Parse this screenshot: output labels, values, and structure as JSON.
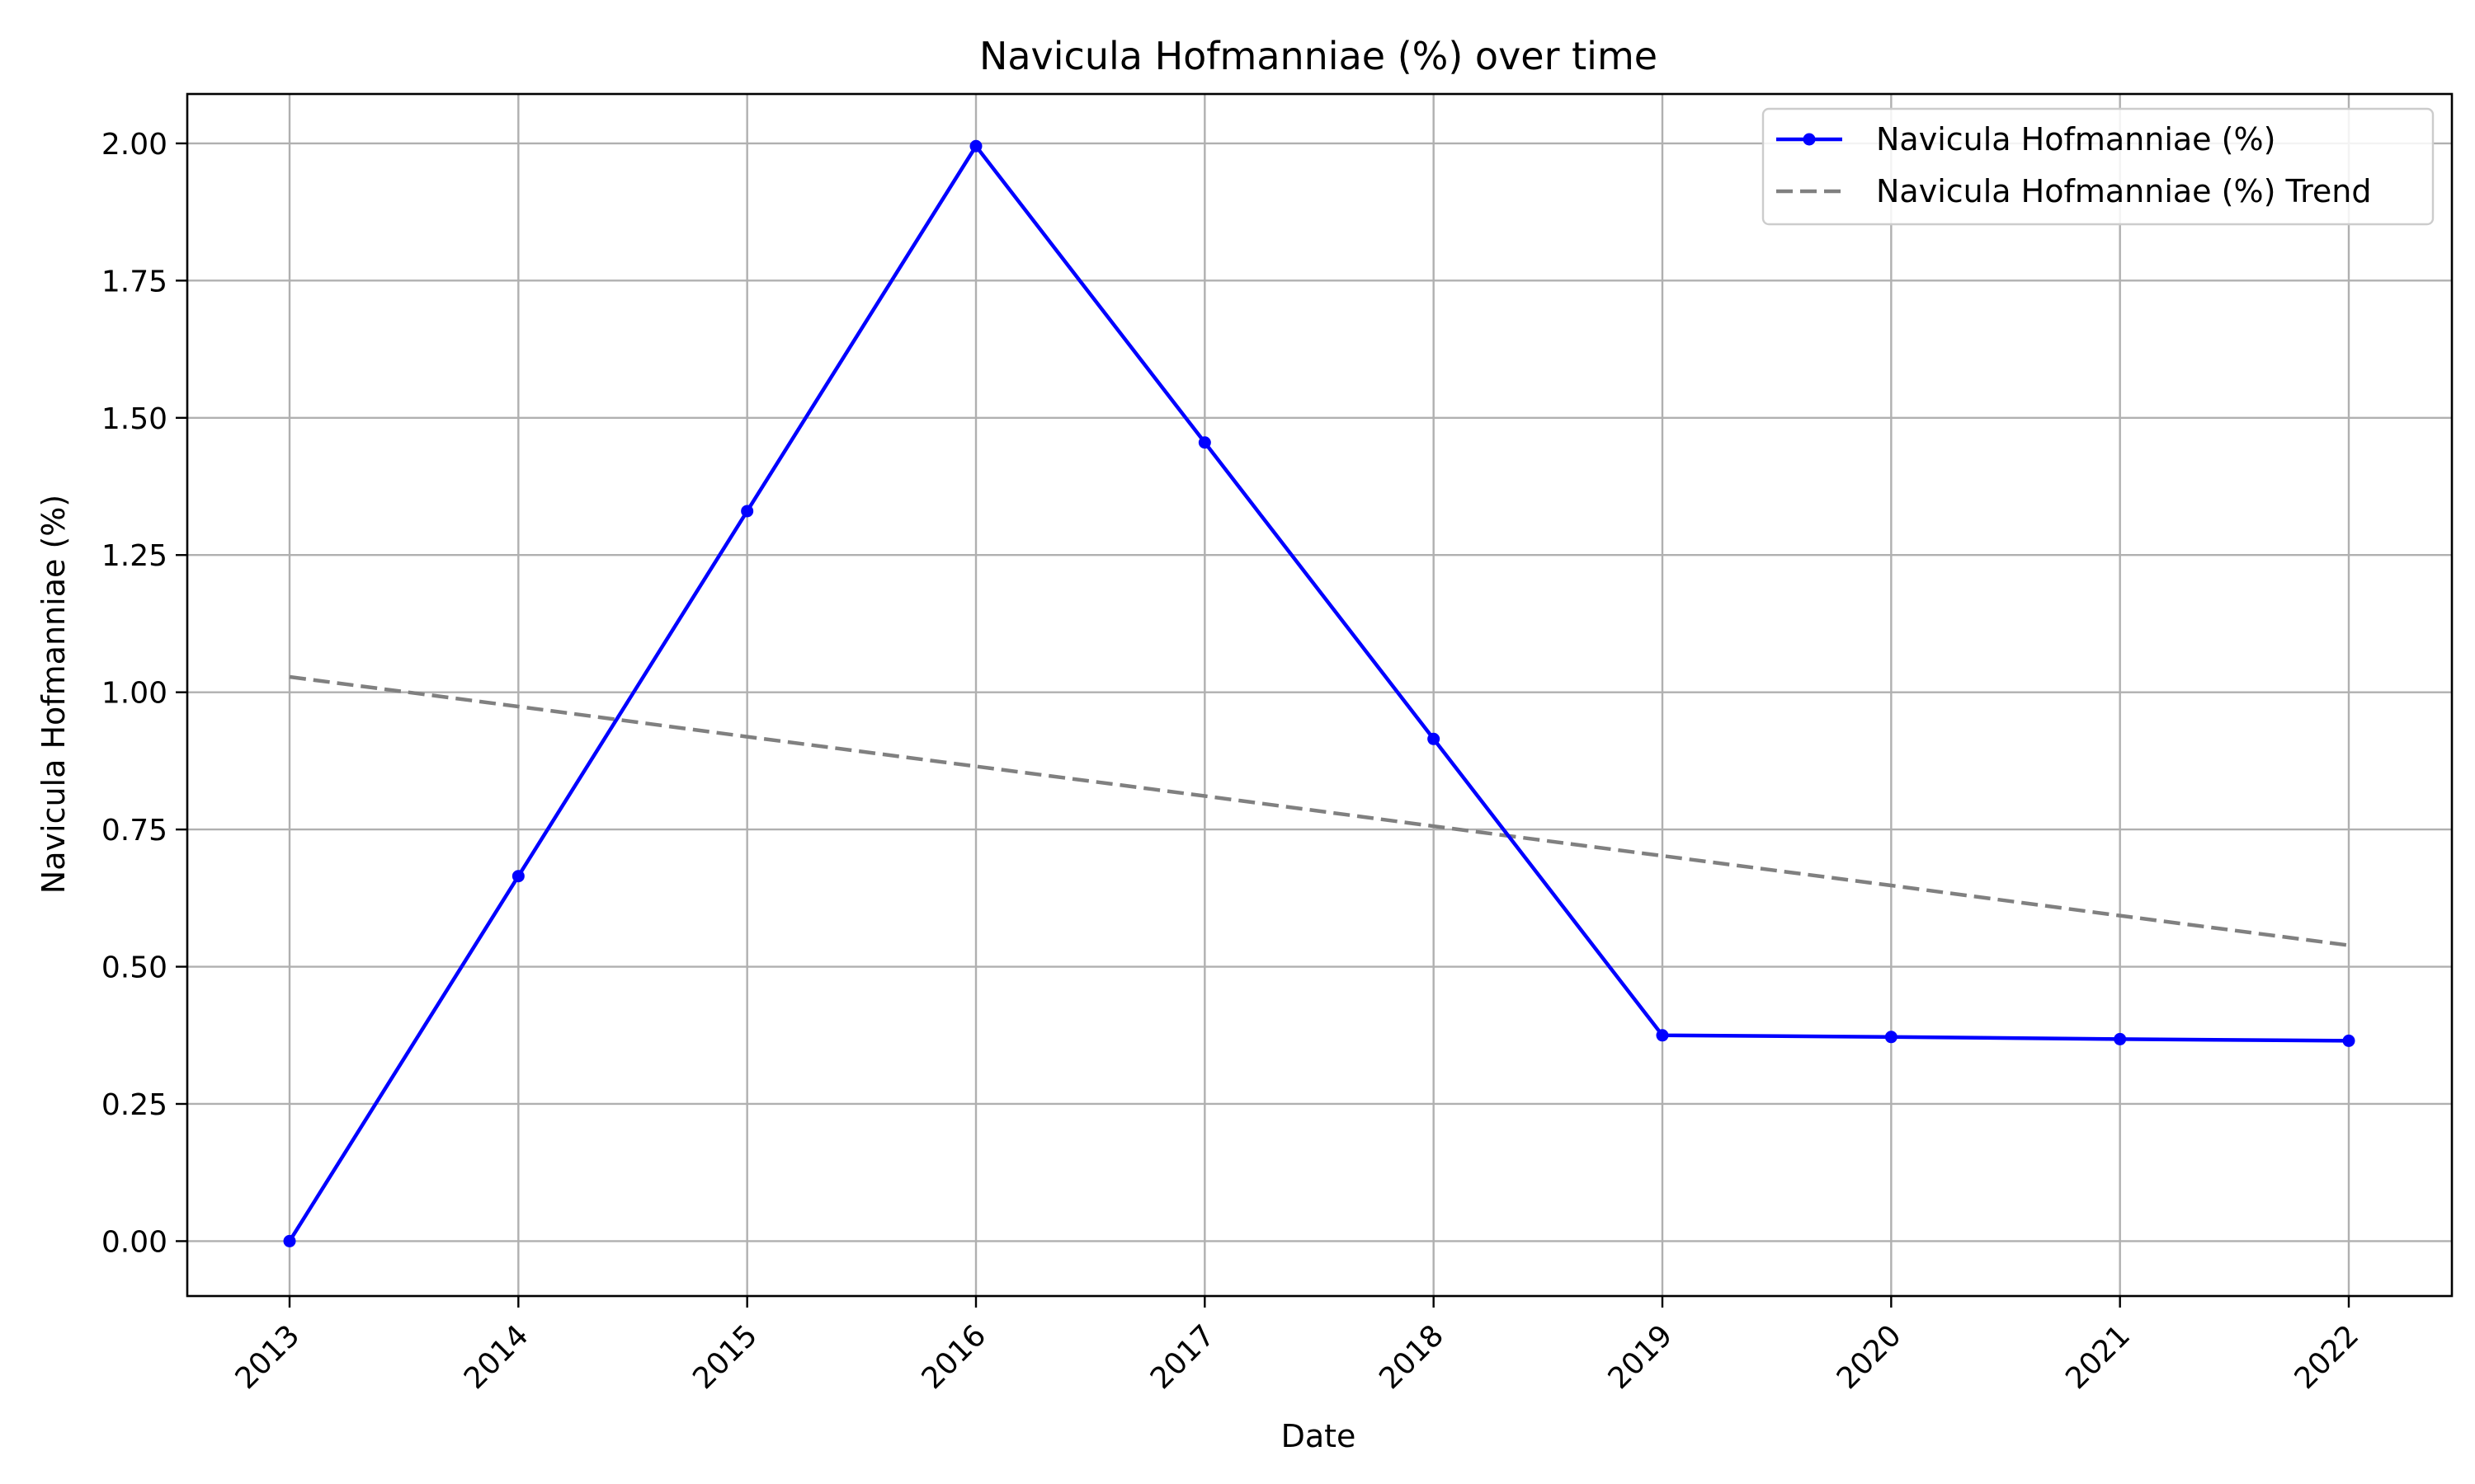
{
  "chart_data": {
    "type": "line",
    "title": "Navicula Hofmanniae (%) over time",
    "xlabel": "Date",
    "ylabel": "Navicula Hofmanniae (%)",
    "x": [
      "2013",
      "2014",
      "2015",
      "2016",
      "2017",
      "2018",
      "2019",
      "2020",
      "2021",
      "2022"
    ],
    "ylim": [
      -0.1,
      2.09
    ],
    "yticks": [
      "0.00",
      "0.25",
      "0.50",
      "0.75",
      "1.00",
      "1.25",
      "1.50",
      "1.75",
      "2.00"
    ],
    "ytick_values": [
      0,
      0.25,
      0.5,
      0.75,
      1.0,
      1.25,
      1.5,
      1.75,
      2.0
    ],
    "grid": true,
    "legend_position": "top-right",
    "series": [
      {
        "name": "Navicula Hofmanniae (%)",
        "style": "solid-with-markers",
        "color": "#0000ff",
        "values": [
          0.0,
          0.665,
          1.33,
          1.995,
          1.455,
          0.915,
          0.375,
          0.372,
          0.368,
          0.365
        ]
      },
      {
        "name": "Navicula Hofmanniae (%) Trend",
        "style": "dashed",
        "color": "#808080",
        "values": [
          1.028,
          0.974,
          0.919,
          0.865,
          0.811,
          0.756,
          0.702,
          0.648,
          0.593,
          0.539
        ]
      }
    ]
  }
}
